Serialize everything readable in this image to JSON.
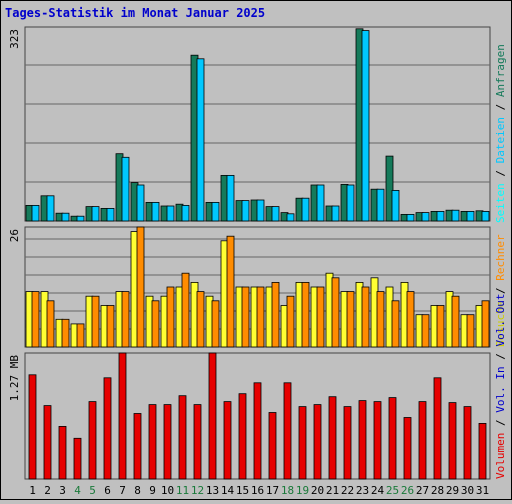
{
  "title": "Tages-Statistik im Monat Januar 2025",
  "colors": {
    "background": "#c0c0c0",
    "title": "#0000cc",
    "anfragen": "#157a5a",
    "dateien": "#00c8ff",
    "seiten": "#00ffff",
    "besuche": "#ffff33",
    "rechner": "#ff8c00",
    "vol_out": "#0000cc",
    "vol_in": "#e60000",
    "grid": "#666666"
  },
  "chart_data": [
    {
      "type": "bar",
      "panel": "requests",
      "ytick_label": "323",
      "ylim": [
        0,
        323
      ],
      "grid": true,
      "legend_position": "right",
      "legend": [
        "Anfragen",
        "Dateien",
        "Seiten"
      ],
      "categories": [
        "1",
        "2",
        "3",
        "4",
        "5",
        "6",
        "7",
        "8",
        "9",
        "10",
        "11",
        "12",
        "13",
        "14",
        "15",
        "16",
        "17",
        "18",
        "19",
        "20",
        "21",
        "22",
        "23",
        "24",
        "25",
        "26",
        "27",
        "28",
        "29",
        "30",
        "31"
      ],
      "series": [
        {
          "name": "Anfragen",
          "color": "#157a5a",
          "values": [
            26,
            42,
            13,
            8,
            24,
            21,
            112,
            64,
            31,
            25,
            28,
            276,
            31,
            76,
            34,
            35,
            24,
            14,
            38,
            60,
            25,
            61,
            320,
            53,
            108,
            11,
            14,
            16,
            18,
            16,
            17
          ]
        },
        {
          "name": "Dateien",
          "color": "#00c8ff",
          "values": [
            26,
            42,
            13,
            8,
            24,
            21,
            106,
            60,
            31,
            25,
            26,
            270,
            31,
            76,
            34,
            35,
            24,
            12,
            38,
            60,
            25,
            60,
            317,
            53,
            51,
            11,
            14,
            16,
            18,
            16,
            16
          ]
        }
      ]
    },
    {
      "type": "bar",
      "panel": "visits",
      "ytick_label": "26",
      "ylim": [
        0,
        26
      ],
      "grid": true,
      "legend_position": "right",
      "legend": [
        "Besuche",
        "Rechner"
      ],
      "categories": [
        "1",
        "2",
        "3",
        "4",
        "5",
        "6",
        "7",
        "8",
        "9",
        "10",
        "11",
        "12",
        "13",
        "14",
        "15",
        "16",
        "17",
        "18",
        "19",
        "20",
        "21",
        "22",
        "23",
        "24",
        "25",
        "26",
        "27",
        "28",
        "29",
        "30",
        "31"
      ],
      "series": [
        {
          "name": "Besuche",
          "color": "#ffff33",
          "values": [
            12,
            12,
            6,
            5,
            11,
            9,
            12,
            25,
            11,
            11,
            13,
            14,
            11,
            23,
            13,
            13,
            13,
            9,
            14,
            13,
            16,
            12,
            14,
            15,
            13,
            14,
            7,
            9,
            12,
            7,
            9
          ]
        },
        {
          "name": "Rechner",
          "color": "#ff8c00",
          "values": [
            12,
            10,
            6,
            5,
            11,
            9,
            12,
            26,
            10,
            13,
            16,
            12,
            10,
            24,
            13,
            13,
            14,
            11,
            14,
            13,
            15,
            12,
            13,
            12,
            10,
            12,
            7,
            9,
            11,
            7,
            10
          ]
        }
      ]
    },
    {
      "type": "bar",
      "panel": "volume",
      "ytick_label": "1.27 MB",
      "ylim": [
        0,
        1.27
      ],
      "grid": false,
      "legend_position": "right",
      "legend": [
        "Volumen",
        "Vol. In",
        "Vol. Out"
      ],
      "categories": [
        "1",
        "2",
        "3",
        "4",
        "5",
        "6",
        "7",
        "8",
        "9",
        "10",
        "11",
        "12",
        "13",
        "14",
        "15",
        "16",
        "17",
        "18",
        "19",
        "20",
        "21",
        "22",
        "23",
        "24",
        "25",
        "26",
        "27",
        "28",
        "29",
        "30",
        "31"
      ],
      "series": [
        {
          "name": "Volumen",
          "color": "#e60000",
          "values": [
            1.05,
            0.74,
            0.53,
            0.41,
            0.78,
            1.02,
            1.28,
            0.66,
            0.75,
            0.75,
            0.84,
            0.75,
            1.3,
            0.78,
            0.86,
            0.97,
            0.67,
            0.97,
            0.73,
            0.75,
            0.83,
            0.73,
            0.79,
            0.78,
            0.82,
            0.62,
            0.78,
            1.02,
            0.77,
            0.73,
            0.56
          ]
        }
      ]
    }
  ],
  "x_axis": {
    "labels": [
      "1",
      "2",
      "3",
      "4",
      "5",
      "6",
      "7",
      "8",
      "9",
      "10",
      "11",
      "12",
      "13",
      "14",
      "15",
      "16",
      "17",
      "18",
      "19",
      "20",
      "21",
      "22",
      "23",
      "24",
      "25",
      "26",
      "27",
      "28",
      "29",
      "30",
      "31"
    ],
    "weekend_days": [
      4,
      5,
      11,
      12,
      18,
      19,
      25,
      26
    ],
    "weekend_color": "#1a7a3a",
    "weekday_color": "#000000"
  }
}
